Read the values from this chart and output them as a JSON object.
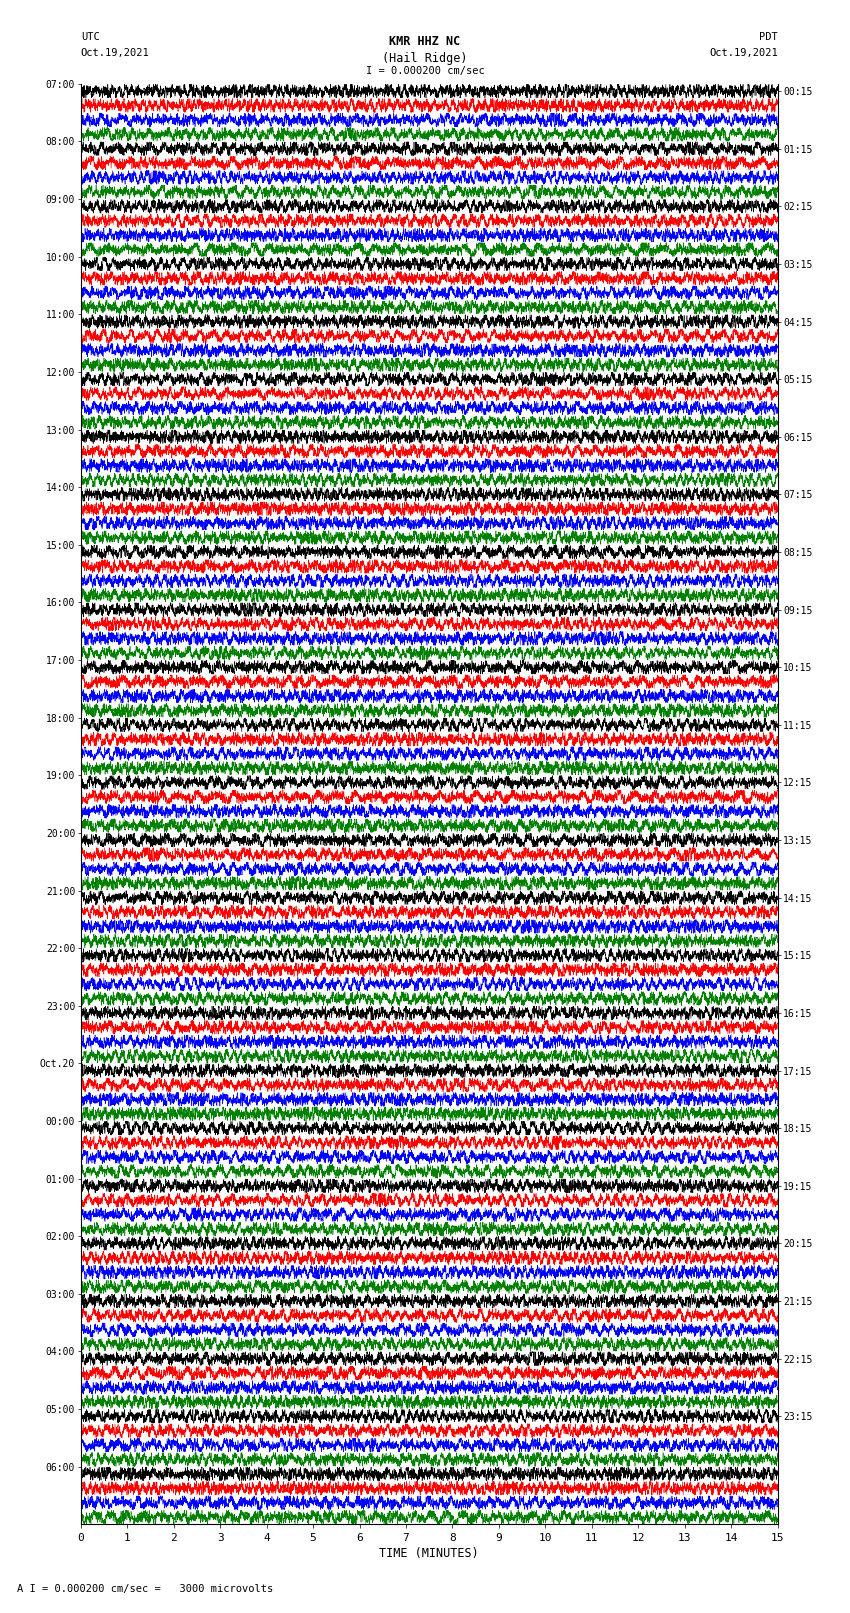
{
  "title_line1": "KMR HHZ NC",
  "title_line2": "(Hail Ridge)",
  "scale_label": "I = 0.000200 cm/sec",
  "footer_label": "A I = 0.000200 cm/sec =   3000 microvolts",
  "left_label": "UTC",
  "left_date": "Oct.19,2021",
  "right_label": "PDT",
  "right_date": "Oct.19,2021",
  "xlabel": "TIME (MINUTES)",
  "xticks": [
    0,
    1,
    2,
    3,
    4,
    5,
    6,
    7,
    8,
    9,
    10,
    11,
    12,
    13,
    14,
    15
  ],
  "left_times": [
    "07:00",
    "08:00",
    "09:00",
    "10:00",
    "11:00",
    "12:00",
    "13:00",
    "14:00",
    "15:00",
    "16:00",
    "17:00",
    "18:00",
    "19:00",
    "20:00",
    "21:00",
    "22:00",
    "23:00",
    "Oct.20",
    "00:00",
    "01:00",
    "02:00",
    "03:00",
    "04:00",
    "05:00",
    "06:00"
  ],
  "right_times": [
    "00:15",
    "01:15",
    "02:15",
    "03:15",
    "04:15",
    "05:15",
    "06:15",
    "07:15",
    "08:15",
    "09:15",
    "10:15",
    "11:15",
    "12:15",
    "13:15",
    "14:15",
    "15:15",
    "16:15",
    "17:15",
    "18:15",
    "19:15",
    "20:15",
    "21:15",
    "22:15",
    "23:15"
  ],
  "num_rows": 25,
  "traces_per_row": 4,
  "colors": [
    "black",
    "red",
    "blue",
    "green"
  ],
  "bg_color": "white",
  "fig_width": 8.5,
  "fig_height": 16.13,
  "dpi": 100,
  "seed": 42
}
